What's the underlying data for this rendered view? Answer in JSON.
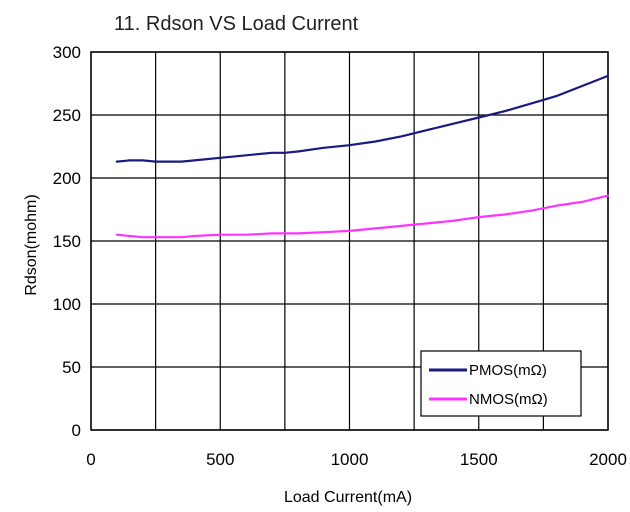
{
  "chart_data": {
    "type": "line",
    "title": "11. Rdson VS Load Current",
    "xlabel": "Load Current(mA)",
    "ylabel": "Rdson(mohm)",
    "xlim": [
      0,
      2000
    ],
    "ylim": [
      0,
      300
    ],
    "xticks": [
      "0",
      "500",
      "1000",
      "1500",
      "2000"
    ],
    "yticks": [
      "0",
      "50",
      "100",
      "150",
      "200",
      "250",
      "300"
    ],
    "x_gridlines": [
      0,
      250,
      500,
      750,
      1000,
      1250,
      1500,
      1750,
      2000
    ],
    "y_gridlines": [
      0,
      50,
      100,
      150,
      200,
      250,
      300
    ],
    "grid": true,
    "legend_position": "bottom-right",
    "series": [
      {
        "name": "PMOS(mΩ)",
        "color": "#1a1a80",
        "x": [
          100,
          150,
          200,
          250,
          300,
          350,
          400,
          500,
          600,
          700,
          750,
          800,
          900,
          1000,
          1100,
          1200,
          1300,
          1400,
          1500,
          1600,
          1700,
          1800,
          1900,
          2000
        ],
        "y": [
          213,
          214,
          214,
          213,
          213,
          213,
          214,
          216,
          218,
          220,
          220,
          221,
          224,
          226,
          229,
          233,
          238,
          243,
          248,
          253,
          259,
          265,
          273,
          281
        ]
      },
      {
        "name": "NMOS(mΩ)",
        "color": "#ff33ff",
        "x": [
          100,
          150,
          200,
          250,
          300,
          350,
          400,
          500,
          600,
          700,
          800,
          900,
          1000,
          1100,
          1200,
          1300,
          1400,
          1500,
          1600,
          1700,
          1800,
          1900,
          2000
        ],
        "y": [
          155,
          154,
          153,
          153,
          153,
          153,
          154,
          155,
          155,
          156,
          156,
          157,
          158,
          160,
          162,
          164,
          166,
          169,
          171,
          174,
          178,
          181,
          186
        ]
      }
    ]
  }
}
